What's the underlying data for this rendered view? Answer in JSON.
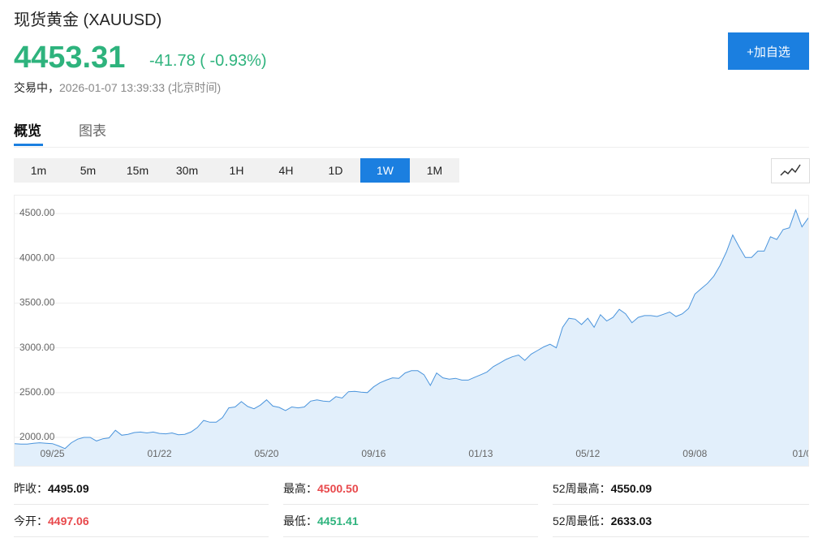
{
  "header": {
    "title": "现货黄金 (XAUUSD)",
    "price": "4453.31",
    "change": "-41.78 ( -0.93%)",
    "status": "交易中，",
    "time": "2026-01-07 13:39:33 (北京时间)",
    "button": "+加自选"
  },
  "tabs": [
    "概览",
    "图表"
  ],
  "periods": [
    "1m",
    "5m",
    "15m",
    "30m",
    "1H",
    "4H",
    "1D",
    "1W",
    "1M"
  ],
  "chart_data": {
    "type": "area",
    "color": "#4a94dc",
    "fill": "#e2effb",
    "grid": true,
    "categories": [
      null,
      null,
      null,
      null,
      null,
      null,
      "09/25",
      null,
      null,
      null,
      null,
      null,
      null,
      null,
      null,
      null,
      null,
      null,
      null,
      null,
      null,
      null,
      null,
      "01/22",
      null,
      null,
      null,
      null,
      null,
      null,
      null,
      null,
      null,
      null,
      null,
      null,
      null,
      null,
      null,
      null,
      "05/20",
      null,
      null,
      null,
      null,
      null,
      null,
      null,
      null,
      null,
      null,
      null,
      null,
      null,
      null,
      null,
      null,
      "09/16",
      null,
      null,
      null,
      null,
      null,
      null,
      null,
      null,
      null,
      null,
      null,
      null,
      null,
      null,
      null,
      null,
      "01/13",
      null,
      null,
      null,
      null,
      null,
      null,
      null,
      null,
      null,
      null,
      null,
      null,
      null,
      null,
      null,
      null,
      "05/12",
      null,
      null,
      null,
      null,
      null,
      null,
      null,
      null,
      null,
      null,
      null,
      null,
      null,
      null,
      null,
      null,
      "09/08",
      null,
      null,
      null,
      null,
      null,
      null,
      null,
      null,
      null,
      null,
      null,
      null,
      null,
      null,
      null,
      null,
      "01/0",
      null
    ],
    "values": [
      1930,
      1925,
      1925,
      1935,
      1940,
      1935,
      1930,
      1905,
      1875,
      1940,
      1980,
      2000,
      2000,
      1960,
      1985,
      1995,
      2080,
      2025,
      2035,
      2055,
      2060,
      2050,
      2060,
      2045,
      2040,
      2050,
      2030,
      2035,
      2060,
      2110,
      2190,
      2170,
      2170,
      2220,
      2330,
      2340,
      2400,
      2345,
      2320,
      2360,
      2420,
      2350,
      2335,
      2300,
      2340,
      2330,
      2340,
      2405,
      2420,
      2405,
      2400,
      2455,
      2440,
      2510,
      2515,
      2505,
      2500,
      2565,
      2610,
      2640,
      2665,
      2660,
      2720,
      2745,
      2745,
      2700,
      2580,
      2720,
      2665,
      2650,
      2660,
      2640,
      2640,
      2670,
      2700,
      2730,
      2790,
      2830,
      2870,
      2900,
      2920,
      2860,
      2930,
      2970,
      3010,
      3040,
      3000,
      3230,
      3330,
      3320,
      3260,
      3330,
      3230,
      3370,
      3300,
      3340,
      3430,
      3380,
      3280,
      3340,
      3360,
      3360,
      3350,
      3375,
      3400,
      3350,
      3380,
      3440,
      3600,
      3660,
      3720,
      3800,
      3920,
      4070,
      4260,
      4130,
      4010,
      4010,
      4080,
      4080,
      4240,
      4210,
      4320,
      4340,
      4540,
      4350,
      4450
    ],
    "ylim": [
      1665,
      4700
    ],
    "yticks": [
      {
        "value": 2000,
        "label": "2000.00"
      },
      {
        "value": 2500,
        "label": "2500.00"
      },
      {
        "value": 3000,
        "label": "3000.00"
      },
      {
        "value": 3500,
        "label": "3500.00"
      },
      {
        "value": 4000,
        "label": "4000.00"
      },
      {
        "value": 4500,
        "label": "4500.00"
      }
    ]
  },
  "stats": [
    [
      {
        "label": "昨收：",
        "value": "4495.09"
      },
      {
        "label": "最高：",
        "value": "4500.50"
      },
      {
        "label": "52周最高：",
        "value": "4550.09"
      }
    ],
    [
      {
        "label": "今开：",
        "value": "4497.06"
      },
      {
        "label": "最低：",
        "value": "4451.41"
      },
      {
        "label": "52周最低：",
        "value": "2633.03"
      }
    ]
  ]
}
